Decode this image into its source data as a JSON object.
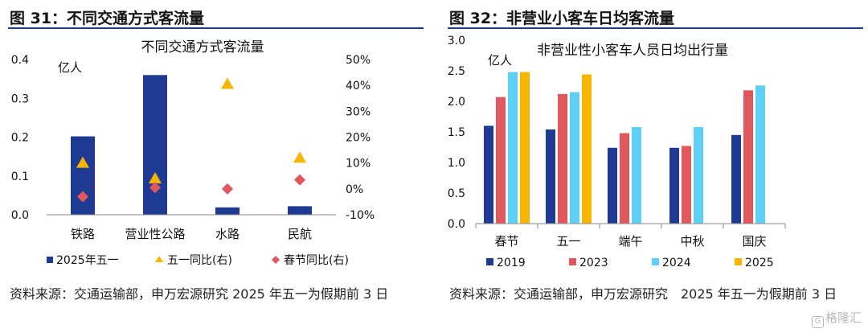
{
  "left": {
    "figure_title": "图 31：不同交通方式客流量",
    "source": "资料来源：交通运输部，申万宏源研究 2025 年五一为假期前 3 日",
    "chart_data": {
      "type": "bar",
      "title": "不同交通方式客流量",
      "unit_label": "亿人",
      "categories": [
        "铁路",
        "营业性公路",
        "水路",
        "民航"
      ],
      "ylim": [
        0,
        0.4
      ],
      "yticks": [
        "0.0",
        "0.1",
        "0.2",
        "0.3",
        "0.4"
      ],
      "y2lim": [
        -10,
        50
      ],
      "y2ticks": [
        "-10%",
        "0%",
        "10%",
        "20%",
        "30%",
        "40%",
        "50%"
      ],
      "series": [
        {
          "name": "2025年五一",
          "kind": "bar",
          "axis": "left",
          "color": "#1f3a93",
          "values": [
            0.202,
            0.36,
            0.019,
            0.022
          ]
        },
        {
          "name": "五一同比(右)",
          "kind": "triangle",
          "axis": "right",
          "color": "#f7b500",
          "values": [
            10.0,
            4.0,
            40.5,
            12.0
          ]
        },
        {
          "name": "春节同比(右)",
          "kind": "diamond",
          "axis": "right",
          "color": "#e0575d",
          "values": [
            -3.0,
            0.5,
            0.0,
            3.5
          ]
        }
      ]
    }
  },
  "right": {
    "figure_title": "图 32：非营业小客车日均客流量",
    "source": "资料来源：交通运输部，申万宏源研究　2025 年五一为假期前 3 日",
    "chart_data": {
      "type": "bar",
      "title": "非营业性小客车人员日均出行量",
      "unit_label": "亿人",
      "categories": [
        "春节",
        "五一",
        "端午",
        "中秋",
        "国庆"
      ],
      "ylim": [
        0,
        3
      ],
      "yticks": [
        "0.0",
        "0.5",
        "1.0",
        "1.5",
        "2.0",
        "2.5",
        "3.0"
      ],
      "series": [
        {
          "name": "2019",
          "color": "#1f3a93",
          "values": [
            1.6,
            1.54,
            1.24,
            1.24,
            1.45
          ]
        },
        {
          "name": "2023",
          "color": "#e0575d",
          "values": [
            2.07,
            2.12,
            1.48,
            1.27,
            2.18
          ]
        },
        {
          "name": "2024",
          "color": "#5ed0f5",
          "values": [
            2.48,
            2.15,
            1.58,
            1.58,
            2.26
          ]
        },
        {
          "name": "2025",
          "color": "#f7b500",
          "values": [
            2.48,
            2.44,
            null,
            null,
            null
          ]
        }
      ]
    }
  },
  "watermark": {
    "icon": "g-logo-icon",
    "text": "格隆汇"
  }
}
